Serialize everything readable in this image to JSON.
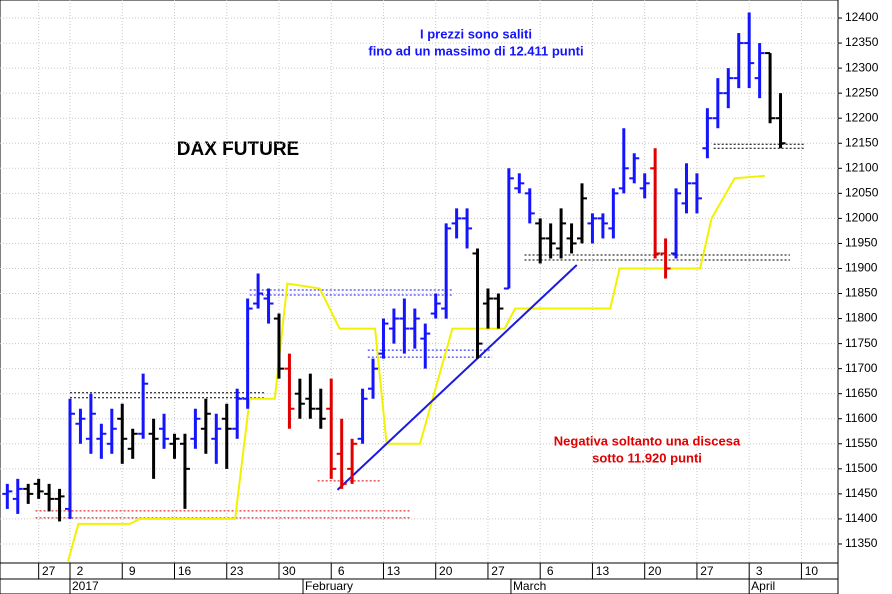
{
  "chart_data": {
    "type": "ohlc",
    "title": "DAX FUTURE",
    "annotations": [
      {
        "text": "I prezzi sono saliti",
        "color": "#1414ff"
      },
      {
        "text": "fino ad un massimo di 12.411 punti",
        "color": "#1414ff"
      },
      {
        "text": "Negativa soltanto una discesa",
        "color": "#e00000"
      },
      {
        "text": "sotto 11.920 punti",
        "color": "#e00000"
      }
    ],
    "x": [
      -6,
      -5,
      -4,
      -3,
      -2,
      -1,
      0,
      1,
      2,
      3,
      4,
      5,
      6,
      7,
      8,
      9,
      10,
      11,
      12,
      13,
      14,
      15,
      16,
      17,
      18,
      19,
      20,
      21,
      22,
      23,
      24,
      25,
      26,
      27,
      28,
      29,
      30,
      31,
      32,
      33,
      34,
      35,
      36,
      37,
      38,
      39,
      40,
      41,
      42,
      43,
      44,
      45,
      46,
      47,
      48,
      49,
      50,
      51,
      52,
      53,
      54,
      55,
      56,
      57,
      58,
      59,
      60,
      61,
      62,
      63,
      64,
      65,
      66,
      67,
      68
    ],
    "open": [
      11450,
      11440,
      11460,
      11470,
      11450,
      11440,
      11420,
      11590,
      11560,
      11560,
      11550,
      11600,
      11540,
      11570,
      11570,
      11580,
      11550,
      11550,
      11560,
      11580,
      11560,
      11600,
      11580,
      11640,
      11830,
      11840,
      11800,
      11700,
      11650,
      11640,
      11620,
      11620,
      11530,
      11500,
      11560,
      11660,
      11730,
      11780,
      11800,
      11780,
      11760,
      11810,
      11820,
      11990,
      12000,
      11930,
      11830,
      11840,
      11860,
      12060,
      12050,
      11990,
      11960,
      11940,
      11960,
      11960,
      11990,
      12000,
      11980,
      12060,
      12080,
      12060,
      12100,
      11930,
      11930,
      12030,
      12070,
      12140,
      12200,
      12250,
      12280,
      12350,
      12280,
      12330,
      12200
    ],
    "high": [
      11470,
      11480,
      11470,
      11480,
      11470,
      11460,
      11640,
      11620,
      11650,
      11590,
      11620,
      11630,
      11580,
      11690,
      11600,
      11610,
      11570,
      11570,
      11620,
      11640,
      11610,
      11630,
      11660,
      11840,
      11890,
      11860,
      11810,
      11730,
      11680,
      11690,
      11660,
      11680,
      11600,
      11560,
      11660,
      11720,
      11800,
      11820,
      11840,
      11820,
      11790,
      11850,
      11990,
      12020,
      12020,
      11940,
      11860,
      11850,
      12100,
      12090,
      12060,
      12000,
      11990,
      12020,
      11990,
      12070,
      12010,
      12010,
      12060,
      12180,
      12130,
      12090,
      12140,
      11960,
      12060,
      12110,
      12090,
      12220,
      12280,
      12300,
      12370,
      12411,
      12350,
      12330,
      12250
    ],
    "low": [
      11420,
      11410,
      11430,
      11440,
      11415,
      11395,
      11400,
      11550,
      11530,
      11520,
      11530,
      11510,
      11520,
      11560,
      11480,
      11540,
      11520,
      11420,
      11540,
      11530,
      11510,
      11500,
      11560,
      11620,
      11820,
      11790,
      11680,
      11580,
      11600,
      11600,
      11580,
      11480,
      11460,
      11470,
      11550,
      11640,
      11720,
      11750,
      11730,
      11740,
      11700,
      11800,
      11800,
      11960,
      11940,
      11720,
      11780,
      11780,
      11860,
      12050,
      11990,
      11910,
      11920,
      11920,
      11930,
      11950,
      11950,
      11960,
      11960,
      12050,
      12070,
      12040,
      11920,
      11880,
      11920,
      12010,
      12010,
      12120,
      12180,
      12220,
      12260,
      12260,
      12240,
      12190,
      12140
    ],
    "close": [
      11455,
      11460,
      11450,
      11455,
      11440,
      11445,
      11610,
      11600,
      11610,
      11570,
      11580,
      11560,
      11570,
      11670,
      11560,
      11560,
      11560,
      11500,
      11600,
      11610,
      11580,
      11580,
      11640,
      11820,
      11850,
      11830,
      11700,
      11620,
      11630,
      11620,
      11600,
      11500,
      11470,
      11550,
      11640,
      11700,
      11790,
      11800,
      11780,
      11800,
      11770,
      11830,
      11980,
      12000,
      11980,
      11750,
      11840,
      11820,
      12080,
      12070,
      12010,
      11960,
      11950,
      11990,
      11950,
      12040,
      12000,
      11990,
      12050,
      12100,
      12120,
      12070,
      11930,
      11900,
      12050,
      12070,
      12040,
      12200,
      12250,
      12280,
      12350,
      12310,
      12330,
      12200,
      12150
    ],
    "colors": [
      "#1414ff",
      "#1414ff",
      "#000000",
      "#000000",
      "#000000",
      "#000000",
      "#1414ff",
      "#1414ff",
      "#1414ff",
      "#1414ff",
      "#1414ff",
      "#000000",
      "#000000",
      "#1414ff",
      "#000000",
      "#1414ff",
      "#000000",
      "#000000",
      "#1414ff",
      "#000000",
      "#1414ff",
      "#000000",
      "#1414ff",
      "#1414ff",
      "#1414ff",
      "#1414ff",
      "#000000",
      "#e00000",
      "#000000",
      "#000000",
      "#000000",
      "#e00000",
      "#e00000",
      "#e00000",
      "#1414ff",
      "#1414ff",
      "#1414ff",
      "#1414ff",
      "#1414ff",
      "#1414ff",
      "#1414ff",
      "#1414ff",
      "#1414ff",
      "#1414ff",
      "#1414ff",
      "#000000",
      "#000000",
      "#000000",
      "#1414ff",
      "#1414ff",
      "#1414ff",
      "#000000",
      "#000000",
      "#000000",
      "#000000",
      "#000000",
      "#1414ff",
      "#1414ff",
      "#1414ff",
      "#1414ff",
      "#1414ff",
      "#1414ff",
      "#e00000",
      "#e00000",
      "#1414ff",
      "#1414ff",
      "#1414ff",
      "#1414ff",
      "#1414ff",
      "#1414ff",
      "#1414ff",
      "#1414ff",
      "#1414ff",
      "#000000",
      "#000000"
    ],
    "lines": [
      {
        "color": "#f2f200",
        "x": [
          -0.2,
          0.8,
          5.7,
          6.7,
          15.8,
          17.2,
          19.6,
          20.8,
          23.9,
          25.8,
          29.2,
          30.3,
          33.5,
          36.6,
          41.6,
          42.6,
          51.7,
          52.6,
          60.3,
          61.4,
          63.6,
          66.5
        ],
        "values": [
          11315,
          11390,
          11390,
          11400,
          11400,
          11640,
          11640,
          11870,
          11860,
          11780,
          11780,
          11550,
          11550,
          11780,
          11780,
          11820,
          11820,
          11900,
          11900,
          12000,
          12080,
          12085
        ]
      },
      {
        "color": "#1a1ae0",
        "x": [
          25.6,
          48.5
        ],
        "values": [
          11458,
          11907
        ]
      }
    ],
    "reference_lines": [
      {
        "value": 11652,
        "x": [
          0,
          18.7
        ],
        "color": "#000000"
      },
      {
        "value": 11642,
        "x": [
          0,
          18.7
        ],
        "color": "#000000"
      },
      {
        "value": 11416,
        "x": [
          -3.3,
          32.5
        ],
        "color": "#e00000"
      },
      {
        "value": 11402,
        "x": [
          -3.3,
          32.5
        ],
        "color": "#e00000"
      },
      {
        "value": 11857,
        "x": [
          17.2,
          36.6
        ],
        "color": "#1414ff"
      },
      {
        "value": 11847,
        "x": [
          17.2,
          36.6
        ],
        "color": "#1414ff"
      },
      {
        "value": 11737,
        "x": [
          28.5,
          40.4
        ],
        "color": "#1414ff"
      },
      {
        "value": 11723,
        "x": [
          28.5,
          40.4
        ],
        "color": "#1414ff"
      },
      {
        "value": 11476,
        "x": [
          23.7,
          29.7
        ],
        "color": "#e00000"
      },
      {
        "value": 11927,
        "x": [
          43.5,
          68.9
        ],
        "color": "#000000"
      },
      {
        "value": 11917,
        "x": [
          43.5,
          68.9
        ],
        "color": "#000000"
      },
      {
        "value": 12148,
        "x": [
          61.6,
          70.3
        ],
        "color": "#000000"
      },
      {
        "value": 12140,
        "x": [
          61.6,
          70.3
        ],
        "color": "#000000"
      }
    ],
    "xlim": [
      -6.7,
      73.5
    ],
    "ylim": [
      11312,
      12436
    ],
    "xticks": [
      {
        "value": -3,
        "label": "27"
      },
      {
        "value": 0,
        "label": "2"
      },
      {
        "value": 5,
        "label": "9"
      },
      {
        "value": 10,
        "label": "16"
      },
      {
        "value": 15,
        "label": "23"
      },
      {
        "value": 20,
        "label": "30"
      },
      {
        "value": 25,
        "label": "6"
      },
      {
        "value": 30,
        "label": "13"
      },
      {
        "value": 35,
        "label": "20"
      },
      {
        "value": 40,
        "label": "27"
      },
      {
        "value": 45,
        "label": "6"
      },
      {
        "value": 50,
        "label": "13"
      },
      {
        "value": 55,
        "label": "20"
      },
      {
        "value": 60,
        "label": "27"
      },
      {
        "value": 65,
        "label": "3"
      },
      {
        "value": 70,
        "label": "10"
      }
    ],
    "month_ticks": [
      {
        "value": 0,
        "label": "2017"
      },
      {
        "value": 22.3,
        "label": "February"
      },
      {
        "value": 42.2,
        "label": "March"
      },
      {
        "value": 65,
        "label": "April"
      }
    ],
    "yticks": [
      11350,
      11400,
      11450,
      11500,
      11550,
      11600,
      11650,
      11700,
      11750,
      11800,
      11850,
      11900,
      11950,
      12000,
      12050,
      12100,
      12150,
      12200,
      12250,
      12300,
      12350,
      12400
    ],
    "grid": true
  }
}
